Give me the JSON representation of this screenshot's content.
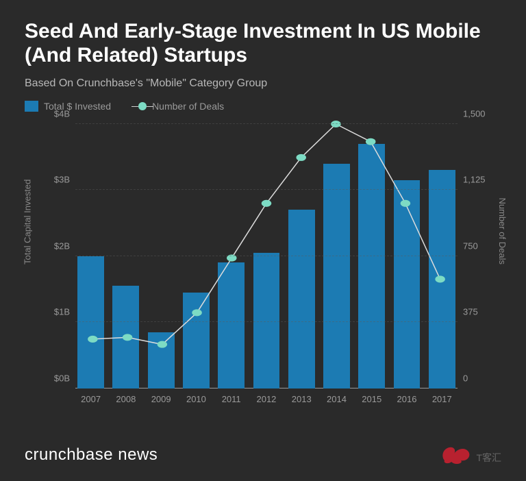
{
  "title": "Seed And Early-Stage Investment In US Mobile (And Related) Startups",
  "subtitle": "Based On Crunchbase's \"Mobile\" Category Group",
  "legend": {
    "bar_label": "Total $ Invested",
    "line_label": "Number of Deals"
  },
  "chart": {
    "type": "bar+line",
    "background_color": "#2a2a2a",
    "bar_color": "#1c7bb3",
    "line_point_color": "#7ddbc4",
    "line_stroke_color": "#dcdcdc",
    "grid_color": "#5a5a5a",
    "text_color": "#9a9a9a",
    "title_fontsize": 30,
    "label_fontsize": 13,
    "bar_width": 0.86,
    "x_categories": [
      "2007",
      "2008",
      "2009",
      "2010",
      "2011",
      "2012",
      "2013",
      "2014",
      "2015",
      "2016",
      "2017"
    ],
    "bars_values_billion": [
      2.0,
      1.55,
      0.85,
      1.45,
      1.9,
      2.05,
      2.7,
      3.4,
      3.7,
      3.15,
      3.3
    ],
    "line_values_deals": [
      280,
      290,
      250,
      430,
      740,
      1050,
      1310,
      1500,
      1400,
      1050,
      620
    ],
    "y_left": {
      "label": "Total Capital Invested",
      "min": 0,
      "max": 4,
      "ticks": [
        0,
        1,
        2,
        3,
        4
      ],
      "tick_labels": [
        "$0B",
        "$1B",
        "$2B",
        "$3B",
        "$4B"
      ]
    },
    "y_right": {
      "label": "Number of Deals",
      "min": 0,
      "max": 1500,
      "ticks": [
        0,
        375,
        750,
        1125,
        1500
      ],
      "tick_labels": [
        "0",
        "375",
        "750",
        "1,125",
        "1,500"
      ]
    }
  },
  "footer": {
    "brand": "crunchbase news",
    "watermark_text": "T客汇",
    "watermark_color": "#d62031"
  }
}
